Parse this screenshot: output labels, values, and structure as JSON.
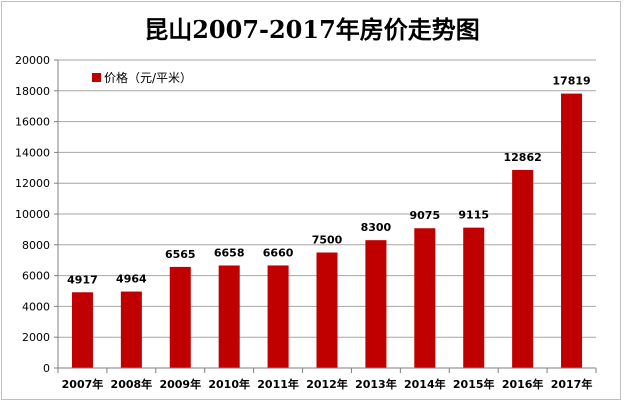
{
  "chart_data": {
    "type": "bar",
    "title": "昆山2007-2017年房价走势图",
    "categories": [
      "2007年",
      "2008年",
      "2009年",
      "2010年",
      "2011年",
      "2012年",
      "2013年",
      "2014年",
      "2015年",
      "2016年",
      "2017年"
    ],
    "series": [
      {
        "name": "价格（元/平米）",
        "values": [
          4917,
          4964,
          6565,
          6658,
          6660,
          7500,
          8300,
          9075,
          9115,
          12862,
          17819
        ],
        "color": "#c00000"
      }
    ],
    "yticks": [
      0,
      2000,
      4000,
      6000,
      8000,
      10000,
      12000,
      14000,
      16000,
      18000,
      20000
    ],
    "ylim": [
      0,
      20000
    ],
    "grid": true,
    "legend_position": "top-left",
    "xlabel": "",
    "ylabel": ""
  }
}
